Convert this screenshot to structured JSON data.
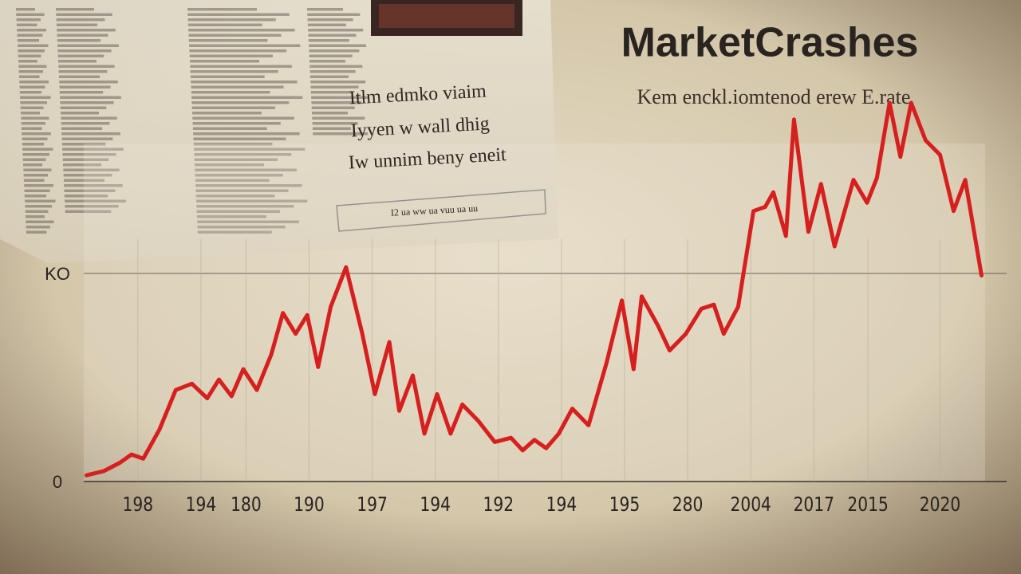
{
  "chart_data": {
    "type": "line",
    "title": "MarketCrashes",
    "subtitle": "Kem enckl.iomtenod erew E.rate",
    "annotations": [
      "Itlm edmko viaim",
      "Iyyen w wall dhig",
      "Iw unnim beny eneit",
      "I2 ua ww ua vuu ua uu"
    ],
    "xlim": [
      0,
      100
    ],
    "xticks": [
      {
        "value": 6,
        "label": "198"
      },
      {
        "value": 13,
        "label": "194"
      },
      {
        "value": 18,
        "label": "180"
      },
      {
        "value": 25,
        "label": "190"
      },
      {
        "value": 32,
        "label": "197"
      },
      {
        "value": 39,
        "label": "194"
      },
      {
        "value": 46,
        "label": "192"
      },
      {
        "value": 53,
        "label": "194"
      },
      {
        "value": 60,
        "label": "195"
      },
      {
        "value": 67,
        "label": "280"
      },
      {
        "value": 74,
        "label": "2004"
      },
      {
        "value": 81,
        "label": "2017"
      },
      {
        "value": 87,
        "label": "2015"
      },
      {
        "value": 95,
        "label": "2020"
      }
    ],
    "ylim": [
      0,
      200
    ],
    "yticks": [
      0,
      {
        "value": 100,
        "label": "KO"
      }
    ],
    "grid": true,
    "series": [
      {
        "color": "#d61f1f",
        "x": [
          0.3,
          2.2,
          4,
          5.3,
          6.6,
          8.4,
          10.2,
          12,
          13.7,
          15,
          16.4,
          17.7,
          19.2,
          20.8,
          22.1,
          23.5,
          24.8,
          26,
          27.4,
          29.1,
          30.9,
          32.3,
          33.9,
          35,
          36.5,
          37.8,
          39.2,
          40.7,
          42,
          43.8,
          45.6,
          47.4,
          48.7,
          50,
          51.3,
          52.7,
          54.2,
          56,
          58,
          59.7,
          61,
          61.9,
          63.7,
          65,
          66.8,
          68.5,
          69.9,
          71,
          72.6,
          74.3,
          75.6,
          76.5,
          77.9,
          78.8,
          80.4,
          81.8,
          83.3,
          85.4,
          86.9,
          88,
          89.4,
          90.6,
          91.8,
          93.4,
          95,
          96.5,
          97.8,
          99.6
        ],
        "values": [
          3,
          5,
          9,
          13,
          11,
          25,
          44,
          47,
          40,
          49,
          41,
          54,
          44,
          61,
          81,
          71,
          80,
          55,
          84,
          103,
          71,
          42,
          67,
          34,
          51,
          23,
          42,
          23,
          37,
          29,
          19,
          21,
          15,
          20,
          16,
          23,
          35,
          27,
          57,
          87,
          54,
          89,
          75,
          63,
          71,
          83,
          85,
          71,
          84,
          130,
          132,
          139,
          118,
          174,
          120,
          143,
          113,
          145,
          134,
          146,
          182,
          156,
          182,
          164,
          157,
          130,
          145,
          99
        ]
      }
    ]
  }
}
